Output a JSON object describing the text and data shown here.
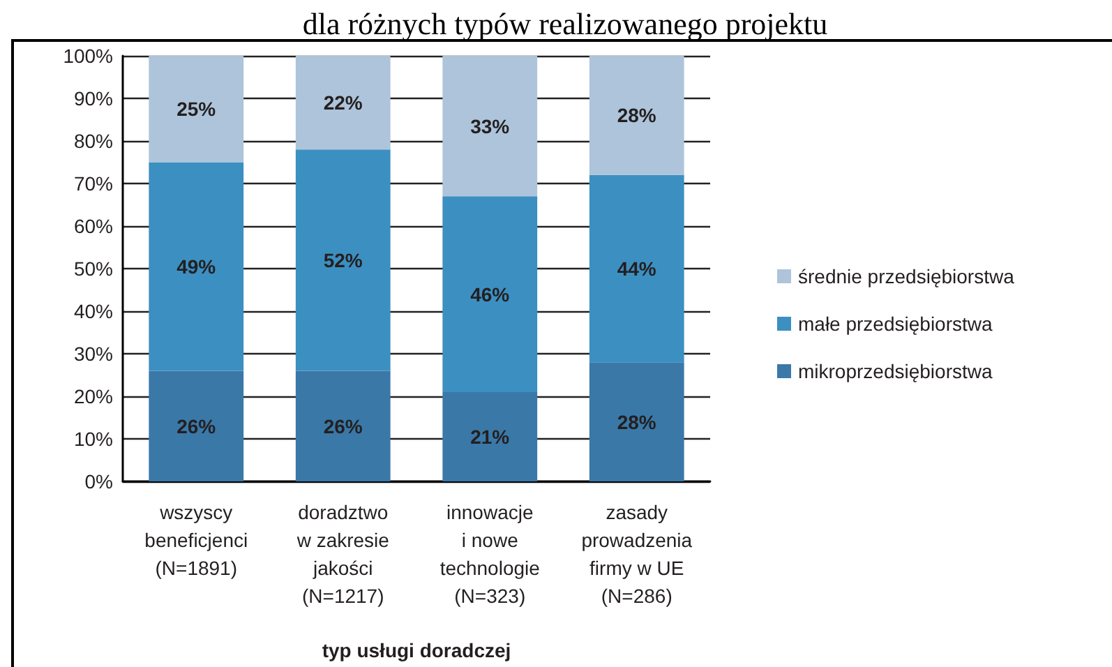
{
  "chart_data": {
    "type": "bar",
    "stacked": true,
    "title": "dla różnych typów realizowanego projektu",
    "xlabel": "typ usługi doradczej",
    "categories": [
      "wszyscy\nbeneficjenci\n(N=1891)",
      "doradztwo\nw zakresie\njakości\n(N=1217)",
      "innowacje\ni nowe\ntechnologie\n(N=323)",
      "zasady\nprowadzenia\nfirmy w UE\n(N=286)"
    ],
    "series": [
      {
        "name": "mikroprzedsiębiorstwa",
        "color": "#3a78a8",
        "values": [
          26,
          26,
          21,
          28
        ],
        "value_labels": [
          "26%",
          "26%",
          "21%",
          "28%"
        ]
      },
      {
        "name": "małe przedsiębiorstwa",
        "color": "#3c8fc1",
        "values": [
          49,
          52,
          46,
          44
        ],
        "value_labels": [
          "49%",
          "52%",
          "46%",
          "44%"
        ]
      },
      {
        "name": "średnie przedsiębiorstwa",
        "color": "#adc4da",
        "values": [
          25,
          22,
          33,
          28
        ],
        "value_labels": [
          "25%",
          "22%",
          "33%",
          "28%"
        ]
      }
    ],
    "ylim": [
      0,
      100
    ],
    "yticks": [
      {
        "value": 0,
        "label": "0%"
      },
      {
        "value": 10,
        "label": "10%"
      },
      {
        "value": 20,
        "label": "20%"
      },
      {
        "value": 30,
        "label": "30%"
      },
      {
        "value": 40,
        "label": "40%"
      },
      {
        "value": 50,
        "label": "50%"
      },
      {
        "value": 60,
        "label": "60%"
      },
      {
        "value": 70,
        "label": "70%"
      },
      {
        "value": 80,
        "label": "80%"
      },
      {
        "value": 90,
        "label": "90%"
      },
      {
        "value": 100,
        "label": "100%"
      }
    ],
    "grid": "y",
    "legend": "right"
  }
}
